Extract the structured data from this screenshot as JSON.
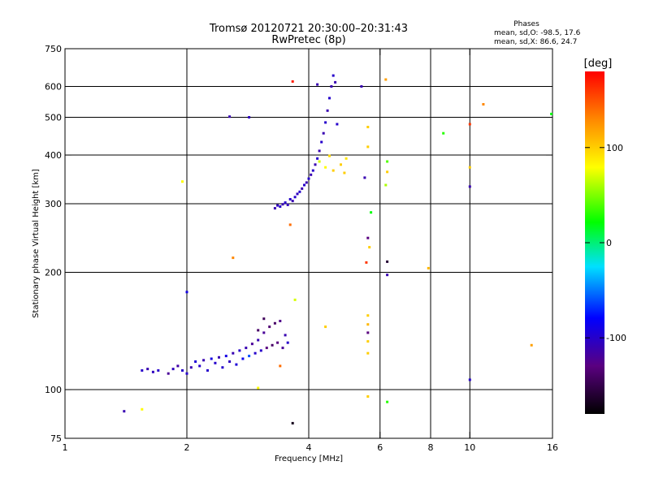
{
  "chart_data": {
    "type": "scatter",
    "title": "Tromsø 20120721 20:30:00–20:31:43",
    "subtitle": "RwPretec (8p)",
    "xlabel": "Frequency [MHz]",
    "ylabel": "Stationary phase Virtual Height [km]",
    "x_scale": "log",
    "y_scale": "log",
    "xlim": [
      1,
      16
    ],
    "ylim": [
      75,
      750
    ],
    "x_ticks": [
      1,
      2,
      4,
      6,
      8,
      10,
      16
    ],
    "y_ticks": [
      75,
      100,
      200,
      300,
      400,
      500,
      600,
      750
    ],
    "x_tick_labels": [
      "1",
      "2",
      "4",
      "6",
      "8",
      "10",
      "16"
    ],
    "y_tick_labels": [
      "75",
      "100",
      "200",
      "300",
      "400",
      "500",
      "600",
      "750"
    ],
    "grid_x": [
      2,
      4,
      6,
      8,
      10
    ],
    "grid_y": [
      100,
      200,
      300,
      400,
      500,
      600
    ],
    "grid": true,
    "phase_stats": {
      "heading": "Phases",
      "line_o": "mean, sd,O: -98.5, 17.6",
      "line_x": "mean, sd,X:  86.6, 24.7"
    },
    "colorbar": {
      "unit_label": "[deg]",
      "range": [
        -180,
        180
      ],
      "ticks": [
        100,
        0,
        -100
      ],
      "tick_labels": [
        "100",
        "0",
        "-100"
      ],
      "colormap": "rainbow: black-purple-blue-cyan-green-yellow-orange-red"
    },
    "series": [
      {
        "layer": "E",
        "points": [
          [
            1.4,
            88,
            -110
          ],
          [
            1.55,
            89,
            80
          ],
          [
            1.55,
            112,
            -100
          ],
          [
            1.6,
            113,
            -110
          ],
          [
            1.65,
            111,
            -105
          ],
          [
            1.7,
            112,
            -100
          ],
          [
            1.8,
            110,
            -120
          ],
          [
            1.85,
            113,
            -105
          ],
          [
            1.9,
            115,
            -115
          ],
          [
            1.95,
            112,
            -100
          ],
          [
            2.0,
            110,
            -100
          ],
          [
            2.05,
            114,
            -110
          ],
          [
            2.1,
            118,
            -95
          ],
          [
            2.15,
            115,
            -100
          ],
          [
            2.2,
            119,
            -110
          ],
          [
            2.25,
            112,
            -100
          ],
          [
            2.3,
            120,
            -90
          ],
          [
            2.35,
            117,
            -100
          ],
          [
            2.4,
            121,
            -110
          ],
          [
            2.45,
            114,
            -100
          ],
          [
            2.5,
            122,
            -90
          ],
          [
            2.55,
            118,
            -105
          ],
          [
            2.6,
            124,
            -110
          ],
          [
            2.65,
            116,
            -95
          ],
          [
            2.7,
            126,
            -100
          ],
          [
            2.75,
            120,
            -85
          ],
          [
            2.8,
            128,
            -110
          ],
          [
            2.85,
            122,
            -60
          ],
          [
            2.9,
            131,
            -120
          ],
          [
            2.95,
            124,
            -100
          ],
          [
            3.0,
            134,
            -110
          ],
          [
            3.0,
            142,
            -140
          ],
          [
            3.05,
            126,
            -100
          ],
          [
            3.1,
            140,
            -120
          ],
          [
            3.1,
            152,
            -145
          ],
          [
            3.15,
            128,
            -130
          ],
          [
            3.2,
            145,
            -135
          ],
          [
            3.25,
            130,
            -140
          ],
          [
            3.3,
            148,
            -140
          ],
          [
            3.35,
            132,
            -130
          ],
          [
            3.4,
            150,
            -125
          ],
          [
            3.45,
            128,
            -120
          ],
          [
            3.5,
            138,
            -110
          ],
          [
            3.55,
            132,
            -100
          ],
          [
            3.0,
            101,
            80
          ],
          [
            3.4,
            115,
            140
          ],
          [
            2.0,
            178,
            -90
          ],
          [
            3.65,
            82,
            -170
          ],
          [
            3.7,
            170,
            70
          ],
          [
            4.4,
            145,
            100
          ]
        ]
      },
      {
        "layer": "F",
        "points": [
          [
            3.3,
            292,
            -110
          ],
          [
            3.35,
            297,
            -105
          ],
          [
            3.4,
            295,
            -100
          ],
          [
            3.45,
            299,
            -110
          ],
          [
            3.5,
            302,
            -100
          ],
          [
            3.55,
            298,
            -105
          ],
          [
            3.6,
            308,
            -100
          ],
          [
            3.65,
            305,
            -110
          ],
          [
            3.7,
            312,
            -100
          ],
          [
            3.75,
            318,
            -105
          ],
          [
            3.8,
            322,
            -100
          ],
          [
            3.85,
            328,
            -110
          ],
          [
            3.9,
            335,
            -100
          ],
          [
            3.95,
            340,
            -110
          ],
          [
            4.0,
            348,
            -100
          ],
          [
            4.05,
            356,
            -110
          ],
          [
            4.1,
            365,
            -100
          ],
          [
            4.15,
            378,
            -110
          ],
          [
            4.2,
            392,
            -100
          ],
          [
            4.25,
            410,
            -110
          ],
          [
            4.3,
            432,
            -100
          ],
          [
            4.35,
            455,
            -110
          ],
          [
            4.4,
            485,
            -100
          ],
          [
            4.45,
            520,
            -110
          ],
          [
            4.5,
            560,
            -100
          ],
          [
            4.55,
            600,
            -110
          ],
          [
            4.6,
            640,
            -100
          ],
          [
            4.65,
            615,
            -110
          ],
          [
            4.7,
            480,
            -100
          ],
          [
            4.25,
            385,
            70
          ],
          [
            4.4,
            372,
            80
          ],
          [
            4.5,
            398,
            95
          ],
          [
            4.6,
            365,
            100
          ],
          [
            4.8,
            378,
            100
          ],
          [
            4.9,
            360,
            100
          ],
          [
            4.95,
            392,
            90
          ],
          [
            3.65,
            618,
            170
          ],
          [
            4.2,
            607,
            -110
          ],
          [
            2.55,
            502,
            -110
          ],
          [
            2.85,
            500,
            -105
          ],
          [
            1.95,
            342,
            80
          ],
          [
            2.6,
            218,
            130
          ],
          [
            3.6,
            265,
            140
          ]
        ]
      },
      {
        "layer": "scattered",
        "points": [
          [
            5.4,
            600,
            -110
          ],
          [
            5.6,
            472,
            100
          ],
          [
            5.6,
            420,
            100
          ],
          [
            5.5,
            350,
            -110
          ],
          [
            5.7,
            285,
            20
          ],
          [
            5.6,
            245,
            -130
          ],
          [
            5.65,
            232,
            100
          ],
          [
            5.55,
            212,
            160
          ],
          [
            5.6,
            155,
            100
          ],
          [
            5.6,
            147,
            110
          ],
          [
            5.6,
            140,
            -130
          ],
          [
            5.6,
            133,
            100
          ],
          [
            5.6,
            124,
            100
          ],
          [
            5.6,
            96,
            100
          ],
          [
            6.2,
            625,
            120
          ],
          [
            6.25,
            385,
            40
          ],
          [
            6.25,
            362,
            100
          ],
          [
            6.2,
            335,
            60
          ],
          [
            6.25,
            213,
            -160
          ],
          [
            6.25,
            197,
            -110
          ],
          [
            6.25,
            93,
            30
          ],
          [
            7.9,
            205,
            110
          ],
          [
            8.6,
            455,
            30
          ],
          [
            10.0,
            480,
            160
          ],
          [
            10.0,
            372,
            100
          ],
          [
            10.0,
            332,
            -110
          ],
          [
            10.0,
            106,
            -100
          ],
          [
            10.8,
            540,
            130
          ],
          [
            14.2,
            130,
            120
          ],
          [
            15.9,
            510,
            20
          ]
        ]
      }
    ]
  }
}
